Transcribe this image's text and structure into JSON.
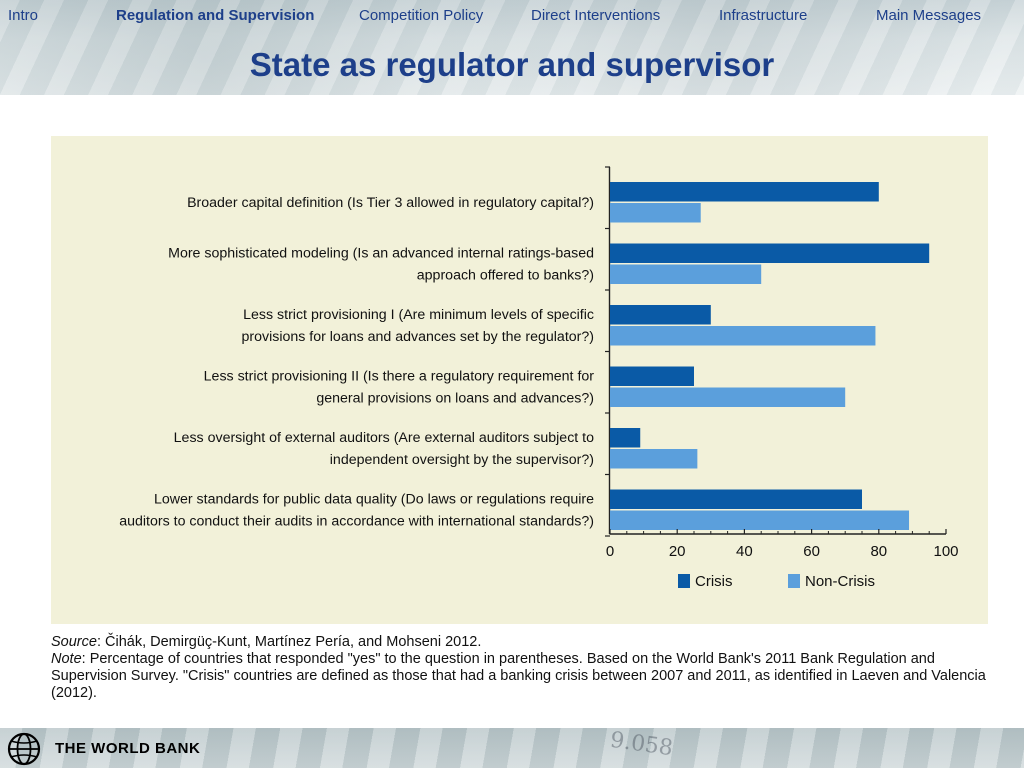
{
  "nav": {
    "items": [
      "Intro",
      "Regulation  and Supervision",
      "Competition Policy",
      "Direct Interventions",
      "Infrastructure",
      "Main Messages"
    ],
    "active_index": 1,
    "color": "#1d3f8a"
  },
  "page": {
    "title": "State as regulator and supervisor"
  },
  "chart_data": {
    "type": "bar",
    "orientation": "horizontal",
    "categories": [
      [
        "Broader capital definition (Is Tier 3 allowed in regulatory capital?)"
      ],
      [
        "More sophisticated modeling (Is an advanced internal ratings-based",
        "approach offered to banks?)"
      ],
      [
        "Less strict provisioning I (Are minimum levels of specific",
        "provisions for loans and advances set by the regulator?)"
      ],
      [
        "Less strict provisioning II (Is there a regulatory requirement for",
        "general provisions on loans and advances?)"
      ],
      [
        "Less oversight of external auditors (Are external auditors subject to",
        "independent oversight by the supervisor?)"
      ],
      [
        "Lower standards for public data quality (Do laws or regulations require",
        "auditors to conduct their audits in accordance with international standards?)"
      ]
    ],
    "series": [
      {
        "name": "Crisis",
        "color": "#0a5aa6",
        "values": [
          80,
          95,
          30,
          25,
          9,
          75
        ]
      },
      {
        "name": "Non-Crisis",
        "color": "#5b9fdc",
        "values": [
          27,
          45,
          79,
          70,
          26,
          89
        ]
      }
    ],
    "xlim": [
      0,
      100
    ],
    "xticks": [
      0,
      20,
      40,
      60,
      80,
      100
    ],
    "legend_position": "bottom",
    "background": "#f2f1d9"
  },
  "source": {
    "source_label": "Source",
    "source_text": ": Čihák, Demirgüç-Kunt, Martínez Pería, and Mohseni 2012.",
    "note_label": "Note",
    "note_text": ": Percentage of countries that responded \"yes\" to the question in parentheses. Based on the World Bank's 2011 Bank Regulation and Supervision Survey. \"Crisis\" countries are defined as those that had a banking crisis between 2007 and 2011, as identified in Laeven and Valencia (2012)."
  },
  "footer": {
    "logo_text": "THE WORLD BANK",
    "background_numerals": "9.058"
  }
}
